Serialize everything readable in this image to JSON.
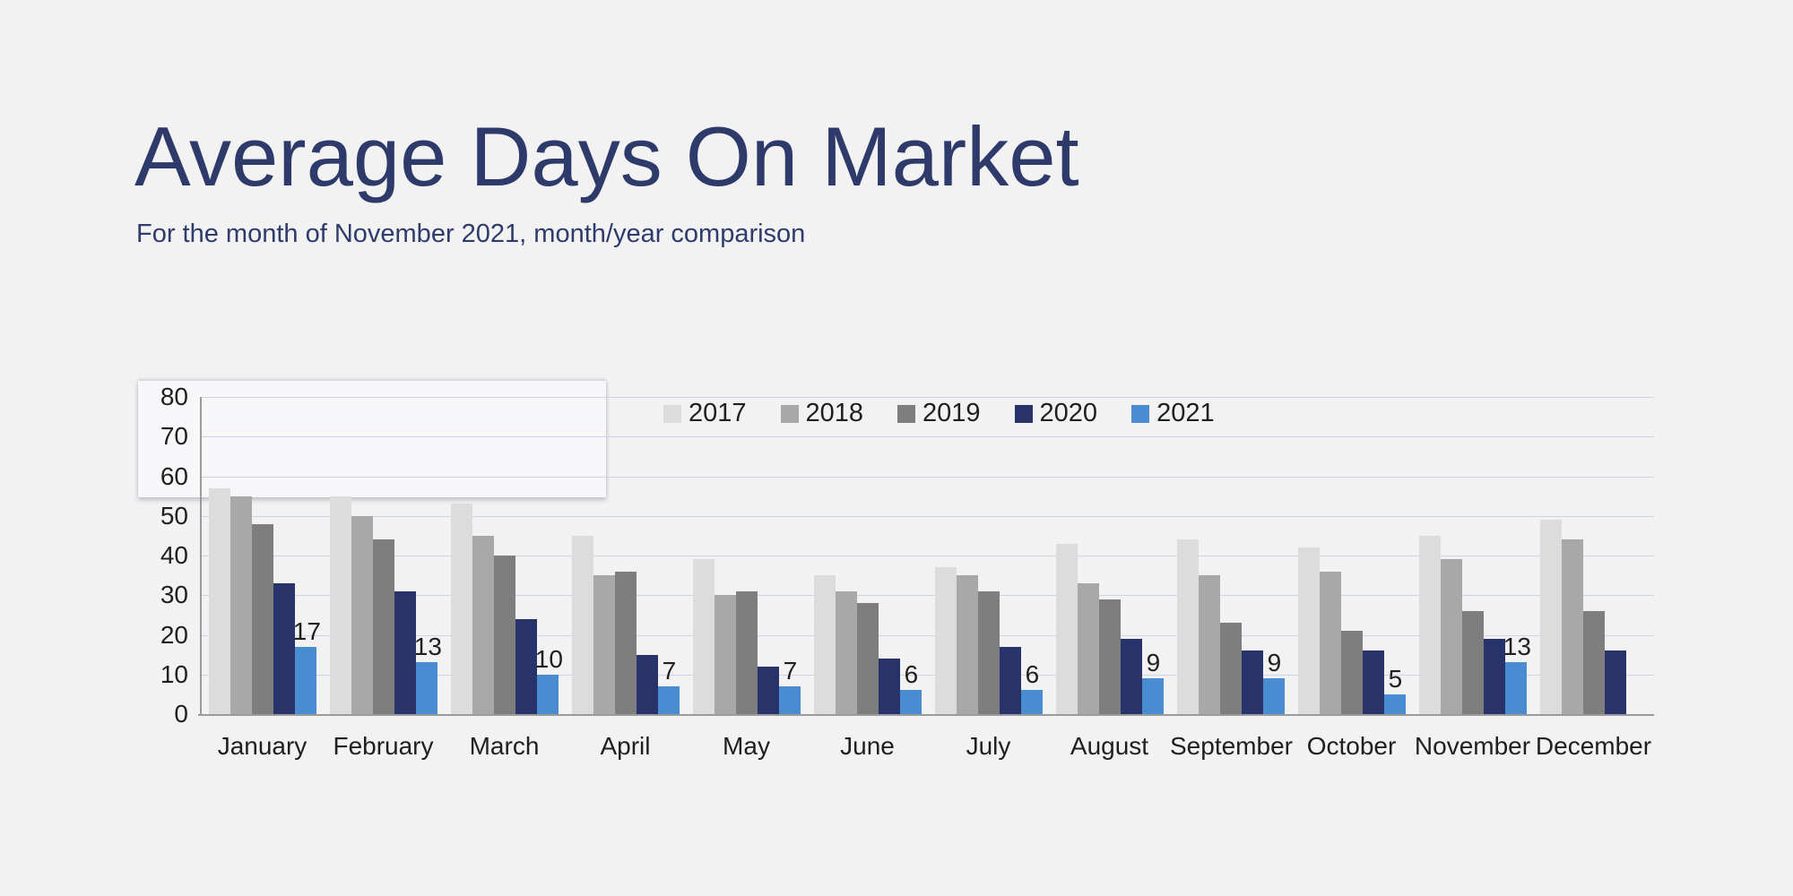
{
  "header": {
    "title": "Average Days On Market",
    "subtitle": "For the month of November 2021, month/year comparison"
  },
  "colors": {
    "background": "#f2f2f3",
    "title_text": "#2d3a6a",
    "subtitle_text": "#2e3b6b",
    "axis_text": "#1f1f1f",
    "gridline": "#ccd5e8",
    "axis_line": "#9b9b9b",
    "value_label_text": "#1f1f1f"
  },
  "chart_data": {
    "type": "bar",
    "title": "Average Days On Market",
    "xlabel": "",
    "ylabel": "",
    "ylim": [
      0,
      80
    ],
    "ytick_step": 10,
    "grid": true,
    "legend_position": "top-center",
    "categories": [
      "January",
      "February",
      "March",
      "April",
      "May",
      "June",
      "July",
      "August",
      "September",
      "October",
      "November",
      "December"
    ],
    "series": [
      {
        "name": "2017",
        "color": "#dcdcdd",
        "show_labels": false,
        "values": [
          57,
          55,
          53,
          45,
          39,
          35,
          37,
          43,
          44,
          42,
          45,
          49
        ]
      },
      {
        "name": "2018",
        "color": "#a8a8a9",
        "show_labels": false,
        "values": [
          55,
          50,
          45,
          35,
          30,
          31,
          35,
          33,
          35,
          36,
          39,
          44
        ]
      },
      {
        "name": "2019",
        "color": "#7e7e7f",
        "show_labels": false,
        "values": [
          48,
          44,
          40,
          36,
          31,
          28,
          31,
          29,
          23,
          21,
          26,
          26
        ]
      },
      {
        "name": "2020",
        "color": "#273369",
        "show_labels": false,
        "values": [
          33,
          31,
          24,
          15,
          12,
          14,
          17,
          19,
          16,
          16,
          19,
          16
        ]
      },
      {
        "name": "2021",
        "color": "#4a8cd2",
        "show_labels": true,
        "values": [
          17,
          13,
          10,
          7,
          7,
          6,
          6,
          9,
          9,
          5,
          13,
          null
        ]
      }
    ]
  }
}
